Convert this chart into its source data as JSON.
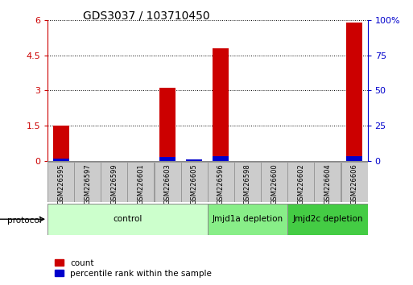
{
  "title": "GDS3037 / 103710450",
  "samples": [
    "GSM226595",
    "GSM226597",
    "GSM226599",
    "GSM226601",
    "GSM226603",
    "GSM226605",
    "GSM226596",
    "GSM226598",
    "GSM226600",
    "GSM226602",
    "GSM226604",
    "GSM226606"
  ],
  "count_values": [
    1.52,
    0,
    0,
    0,
    3.1,
    0,
    4.8,
    0,
    0,
    0,
    0,
    5.88
  ],
  "percentile_values": [
    0.12,
    0,
    0,
    0,
    0.18,
    0.07,
    0.2,
    0,
    0,
    0,
    0,
    0.2
  ],
  "ylim_left": [
    0,
    6
  ],
  "ylim_right": [
    0,
    100
  ],
  "yticks_left": [
    0,
    1.5,
    3.0,
    4.5,
    6.0
  ],
  "ytick_labels_left": [
    "0",
    "1.5",
    "3",
    "4.5",
    "6"
  ],
  "yticks_right": [
    0,
    25,
    50,
    75,
    100
  ],
  "ytick_labels_right": [
    "0",
    "25",
    "50",
    "75",
    "100%"
  ],
  "bar_color_count": "#cc0000",
  "bar_color_pct": "#0000cc",
  "groups": [
    {
      "label": "control",
      "start": 0,
      "end": 6,
      "color": "#ccffcc"
    },
    {
      "label": "Jmjd1a depletion",
      "start": 6,
      "end": 9,
      "color": "#88ee88"
    },
    {
      "label": "Jmjd2c depletion",
      "start": 9,
      "end": 12,
      "color": "#44cc44"
    }
  ],
  "protocol_label": "protocol",
  "legend_count_label": "count",
  "legend_pct_label": "percentile rank within the sample",
  "bar_width": 0.6,
  "sample_box_color": "#cccccc"
}
